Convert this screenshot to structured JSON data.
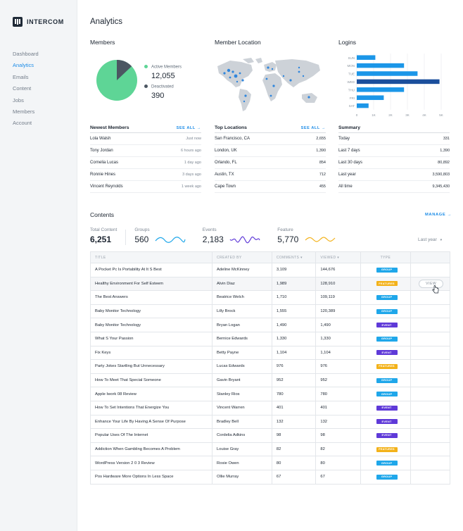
{
  "app": {
    "brand": "INTERCOM"
  },
  "sidebar": {
    "items": [
      "Dashboard",
      "Analytics",
      "Emails",
      "Content",
      "Jobs",
      "Members",
      "Account"
    ],
    "active": "Analytics"
  },
  "page": {
    "title": "Analytics"
  },
  "members": {
    "title": "Members",
    "active_label": "Active Members",
    "active_count": "12,055",
    "deactivated_label": "Deactivated",
    "deactivated_count": "390",
    "colors": {
      "active": "#5ed596",
      "deactivated": "#4c5662"
    }
  },
  "location": {
    "title": "Member Location"
  },
  "logins": {
    "title": "Logins",
    "chart_data": {
      "type": "bar",
      "orientation": "horizontal",
      "categories": [
        "SUN",
        "MON",
        "TUE",
        "WED",
        "THU",
        "FRI",
        "SAT"
      ],
      "values": [
        1100,
        2800,
        3600,
        4900,
        2800,
        1600,
        700
      ],
      "tick_labels": [
        "0",
        "1K",
        "2K",
        "3K",
        "4K",
        "5K"
      ],
      "xlim": [
        0,
        5000
      ],
      "grid": true,
      "colors": {
        "bar": "#1b96e8",
        "highlight": "#1b4f9c"
      }
    }
  },
  "newest_members": {
    "title": "Newest Members",
    "action": "SEE ALL",
    "rows": [
      {
        "name": "Lola Walsh",
        "time": "Just now"
      },
      {
        "name": "Tony Jordan",
        "time": "6 hours ago"
      },
      {
        "name": "Cornelia Lucas",
        "time": "1 day ago"
      },
      {
        "name": "Ronnie Hines",
        "time": "3 days ago"
      },
      {
        "name": "Vincent Reynolds",
        "time": "1 week ago"
      }
    ]
  },
  "top_locations": {
    "title": "Top Locations",
    "action": "SEE ALL",
    "rows": [
      {
        "name": "San Francisco, CA",
        "value": "2,655"
      },
      {
        "name": "London, UK",
        "value": "1,390"
      },
      {
        "name": "Orlando, FL",
        "value": "854"
      },
      {
        "name": "Austin, TX",
        "value": "712"
      },
      {
        "name": "Cape Town",
        "value": "455"
      }
    ]
  },
  "summary": {
    "title": "Summary",
    "rows": [
      {
        "name": "Today",
        "value": "331"
      },
      {
        "name": "Last 7 days",
        "value": "1,390"
      },
      {
        "name": "Last 30 days",
        "value": "80,892"
      },
      {
        "name": "Last year",
        "value": "3,590,803"
      },
      {
        "name": "All time",
        "value": "9,345,430"
      }
    ]
  },
  "contents": {
    "title": "Contents",
    "manage": "MANAGE",
    "period": "Last year",
    "stats": {
      "total_label": "Total Content",
      "total_value": "6,251",
      "groups_label": "Groups",
      "groups_value": "560",
      "events_label": "Events",
      "events_value": "2,183",
      "feature_label": "Feature",
      "feature_value": "5,770"
    },
    "headers": [
      "TITLE",
      "CREATED BY",
      "COMMENTS",
      "VIEWED",
      "TYPE"
    ],
    "view_label": "VIEW",
    "type_colors": {
      "GROUP": "#1fa7ea",
      "EVENT": "#5f3ad8",
      "FEATURES": "#f3b21a"
    },
    "rows": [
      {
        "title": "A Pocket Pc Is Portability At It S Best",
        "by": "Adeline McKinney",
        "comments": "3,109",
        "viewed": "144,676",
        "type": "GROUP"
      },
      {
        "title": "Healthy Environment For Self Esteem",
        "by": "Alvin Diaz",
        "comments": "1,989",
        "viewed": "128,910",
        "type": "FEATURES"
      },
      {
        "title": "The Best Answers",
        "by": "Beatrice Welch",
        "comments": "1,710",
        "viewed": "109,119",
        "type": "GROUP"
      },
      {
        "title": "Baby Monitor Technology",
        "by": "Lilly Brock",
        "comments": "1,555",
        "viewed": "120,389",
        "type": "GROUP"
      },
      {
        "title": "Baby Monitor Technology",
        "by": "Bryan Logan",
        "comments": "1,490",
        "viewed": "1,490",
        "type": "EVENT"
      },
      {
        "title": "What S Your Passion",
        "by": "Bernice Edwards",
        "comments": "1,330",
        "viewed": "1,330",
        "type": "GROUP"
      },
      {
        "title": "Fix Keys",
        "by": "Betty Payne",
        "comments": "1,104",
        "viewed": "1,104",
        "type": "EVENT"
      },
      {
        "title": "Party Jokes Startling But Unnecessary",
        "by": "Lucas Edwards",
        "comments": "976",
        "viewed": "976",
        "type": "FEATURES"
      },
      {
        "title": "How To Meet That Special Someone",
        "by": "Gavin Bryant",
        "comments": "952",
        "viewed": "952",
        "type": "GROUP"
      },
      {
        "title": "Apple Iwork 08 Review",
        "by": "Stanley Rios",
        "comments": "780",
        "viewed": "780",
        "type": "GROUP"
      },
      {
        "title": "How To Set Intentions That Energize You",
        "by": "Vincent Warren",
        "comments": "401",
        "viewed": "401",
        "type": "EVENT"
      },
      {
        "title": "Enhance Your Life By Having A Sense Of Purpose",
        "by": "Bradley Bell",
        "comments": "132",
        "viewed": "132",
        "type": "EVENT"
      },
      {
        "title": "Popular Uses Of The Internet",
        "by": "Cordelia Adkins",
        "comments": "98",
        "viewed": "98",
        "type": "EVENT"
      },
      {
        "title": "Addiction When Gambling Becomes A Problem",
        "by": "Louise Gray",
        "comments": "82",
        "viewed": "82",
        "type": "FEATURES"
      },
      {
        "title": "WordPress Version 2 0 3 Review",
        "by": "Rosie Owen",
        "comments": "80",
        "viewed": "80",
        "type": "GROUP"
      },
      {
        "title": "Pos Hardware More Options In Less Space",
        "by": "Ollie Murray",
        "comments": "67",
        "viewed": "67",
        "type": "GROUP"
      }
    ]
  }
}
